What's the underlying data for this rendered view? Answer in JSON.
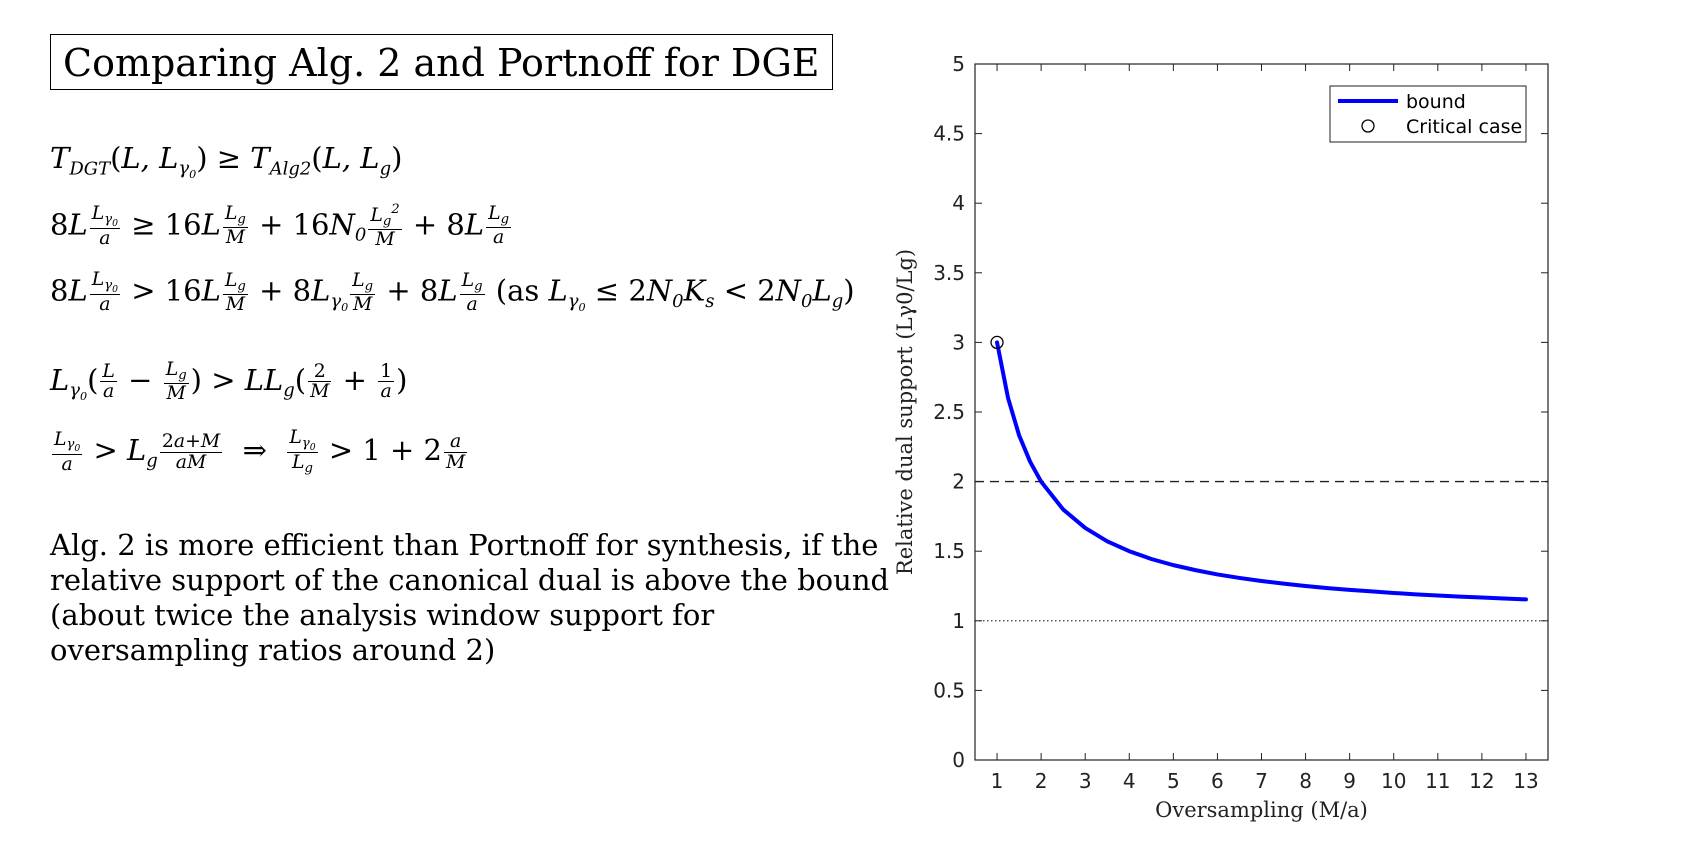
{
  "slide": {
    "title": "Comparing Alg. 2 and Portnoff for DGE",
    "description_lines": [
      "Alg. 2 is more efficient than Portnoff for synthesis, if the",
      "relative support of the canonical dual is above the bound",
      "(about twice the analysis window support for",
      "oversampling ratios around 2)"
    ]
  },
  "chart_data": {
    "type": "line",
    "xlabel": "Oversampling (M/a)",
    "ylabel": "Relative dual support (Lγ0/Lg)",
    "xlim": [
      0.5,
      13.5
    ],
    "ylim": [
      0,
      5
    ],
    "x_ticks": [
      1,
      2,
      3,
      4,
      5,
      6,
      7,
      8,
      9,
      10,
      11,
      12,
      13
    ],
    "y_ticks": [
      0,
      0.5,
      1,
      1.5,
      2,
      2.5,
      3,
      3.5,
      4,
      4.5,
      5
    ],
    "x_tick_labels": [
      "1",
      "2",
      "3",
      "4",
      "5",
      "6",
      "7",
      "8",
      "9",
      "10",
      "11",
      "12",
      "13"
    ],
    "y_tick_labels": [
      "0",
      "0.5",
      "1",
      "1.5",
      "2",
      "2.5",
      "3",
      "3.5",
      "4",
      "4.5",
      "5"
    ],
    "series": [
      {
        "name": "bound",
        "color": "#0000ff",
        "x": [
          1,
          1.25,
          1.5,
          1.75,
          2,
          2.5,
          3,
          3.5,
          4,
          4.5,
          5,
          5.5,
          6,
          6.5,
          7,
          7.5,
          8,
          8.5,
          9,
          9.5,
          10,
          10.5,
          11,
          11.5,
          12,
          12.5,
          13
        ],
        "y": [
          3,
          2.6,
          2.333,
          2.143,
          2,
          1.8,
          1.667,
          1.571,
          1.5,
          1.444,
          1.4,
          1.364,
          1.333,
          1.308,
          1.286,
          1.267,
          1.25,
          1.235,
          1.222,
          1.211,
          1.2,
          1.19,
          1.182,
          1.174,
          1.167,
          1.16,
          1.154
        ]
      }
    ],
    "critical_case": {
      "name": "Critical case",
      "x": 1,
      "y": 3
    },
    "reference_lines": [
      {
        "y": 2,
        "style": "dashed"
      },
      {
        "y": 1,
        "style": "dotted"
      }
    ],
    "legend": {
      "position": "top-right",
      "entries": [
        "bound",
        "Critical case"
      ]
    },
    "grid": false
  }
}
